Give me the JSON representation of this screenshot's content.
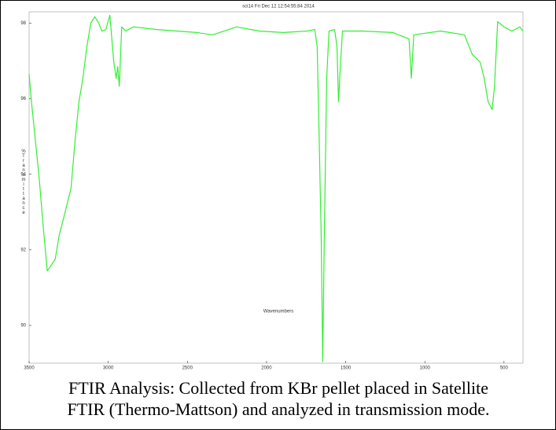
{
  "chart_data": {
    "type": "line",
    "title": "sci14  Fri Dec 12 12:54:55:84 2014",
    "x_label": "Wavenumbers",
    "y_label": "%Transmittance",
    "caption": [
      "FTIR Analysis: Collected from KBr pellet placed in Satellite",
      "FTIR (Thermo-Mattson) and analyzed in transmission mode."
    ],
    "x": [
      3500,
      3485,
      3460,
      3435,
      3410,
      3385,
      3335,
      3310,
      3285,
      3235,
      3210,
      3185,
      3160,
      3135,
      3110,
      3085,
      3060,
      3040,
      3015,
      2990,
      2965,
      2950,
      2940,
      2930,
      2915,
      2890,
      2840,
      2690,
      2440,
      2340,
      2190,
      2045,
      1895,
      1745,
      1695,
      1680,
      1670,
      1655,
      1645,
      1635,
      1620,
      1605,
      1570,
      1555,
      1545,
      1535,
      1520,
      1395,
      1200,
      1100,
      1085,
      1070,
      900,
      750,
      700,
      650,
      625,
      600,
      575,
      560,
      540,
      500,
      450,
      400,
      380
    ],
    "series": [
      {
        "name": "%Transmittance",
        "color": "#33ee33",
        "values": [
          96.65,
          95.92,
          94.88,
          93.83,
          92.58,
          91.44,
          91.75,
          92.38,
          92.79,
          93.63,
          94.88,
          95.92,
          96.54,
          97.38,
          98.0,
          98.17,
          98.0,
          97.79,
          97.83,
          98.21,
          96.96,
          96.54,
          96.85,
          96.33,
          97.9,
          97.79,
          97.9,
          97.83,
          97.75,
          97.69,
          97.9,
          97.79,
          97.75,
          97.79,
          97.83,
          97.38,
          95.5,
          92.38,
          89.04,
          92.38,
          96.54,
          97.79,
          97.83,
          97.38,
          95.92,
          96.75,
          97.79,
          97.79,
          97.75,
          97.58,
          96.54,
          97.69,
          97.79,
          97.69,
          97.17,
          96.96,
          96.54,
          95.92,
          95.71,
          96.33,
          98.04,
          97.9,
          97.79,
          97.9,
          97.79
        ]
      }
    ],
    "xlim": [
      3500,
      380
    ],
    "xticks": [
      3500,
      3000,
      2500,
      2000,
      1500,
      1000,
      500
    ],
    "ylim": [
      89,
      98.3
    ],
    "yticks": [
      90,
      92,
      94,
      96,
      98
    ]
  }
}
